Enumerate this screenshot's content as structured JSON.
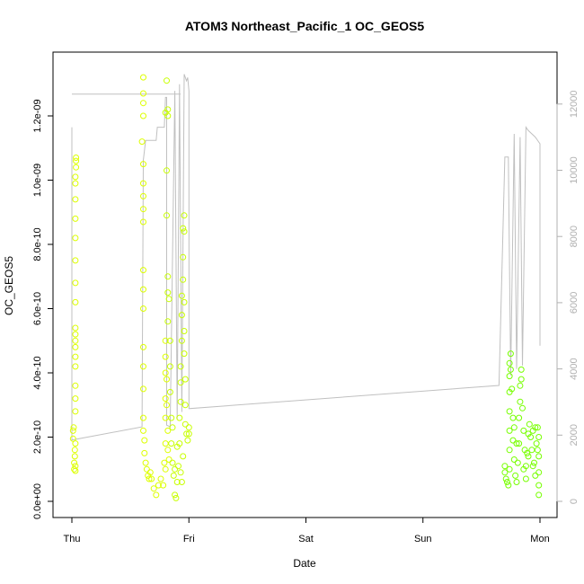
{
  "chart_data": {
    "type": "scatter",
    "title": "ATOM3 Northeast_Pacific_1 OC_GEOS5",
    "xlabel": "Date",
    "ylabel": "OC_GEOS5",
    "x_ticks": [
      "Thu",
      "Fri",
      "Sat",
      "Sun",
      "Mon"
    ],
    "xlim": [
      0,
      4
    ],
    "ylim": [
      0,
      1.35e-09
    ],
    "y_ticks": [
      "0.0e+00",
      "2.0e-10",
      "4.0e-10",
      "6.0e-10",
      "8.0e-10",
      "1.0e-09",
      "1.2e-09"
    ],
    "y2_ticks": [
      "0",
      "2000",
      "4000",
      "6000",
      "8000",
      "10000",
      "12000"
    ],
    "y2lim": [
      0,
      12500
    ],
    "grid": false,
    "colors": {
      "flight1": "#ddff00",
      "flight2": "#c8ff00",
      "flight3": "#77ff00",
      "altitude": "#c0c0c0"
    },
    "series": [
      {
        "points": [
          [
            0.01,
            2.2e-10
          ],
          [
            0.01,
            1.95e-10
          ],
          [
            0.015,
            2.3e-10
          ],
          [
            0.02,
            1e-10
          ],
          [
            0.02,
            1.2e-10
          ],
          [
            0.025,
            1.4e-10
          ],
          [
            0.025,
            1.6e-10
          ],
          [
            0.03,
            1.8e-10
          ],
          [
            0.03,
            2.8e-10
          ],
          [
            0.03,
            3.2e-10
          ],
          [
            0.03,
            3.6e-10
          ],
          [
            0.03,
            4.2e-10
          ],
          [
            0.03,
            4.5e-10
          ],
          [
            0.03,
            4.8e-10
          ],
          [
            0.03,
            5e-10
          ],
          [
            0.03,
            5.2e-10
          ],
          [
            0.03,
            5.4e-10
          ],
          [
            0.03,
            6.2e-10
          ],
          [
            0.03,
            6.8e-10
          ],
          [
            0.03,
            7.5e-10
          ],
          [
            0.03,
            8.2e-10
          ],
          [
            0.03,
            8.8e-10
          ],
          [
            0.03,
            9.4e-10
          ],
          [
            0.03,
            9.9e-10
          ],
          [
            0.03,
            1.01e-09
          ],
          [
            0.035,
            1.04e-09
          ],
          [
            0.035,
            1.06e-09
          ],
          [
            0.035,
            1.07e-09
          ],
          [
            0.03,
            9.5e-11
          ],
          [
            0.03,
            1.1e-10
          ],
          [
            0.61,
            1.32e-09
          ],
          [
            0.61,
            1.27e-09
          ],
          [
            0.61,
            1.24e-09
          ],
          [
            0.61,
            1.2e-09
          ],
          [
            0.6,
            1.12e-09
          ],
          [
            0.61,
            1.05e-09
          ],
          [
            0.61,
            9.9e-10
          ],
          [
            0.61,
            9.5e-10
          ],
          [
            0.61,
            9.1e-10
          ],
          [
            0.61,
            8.7e-10
          ],
          [
            0.61,
            7.2e-10
          ],
          [
            0.61,
            6.6e-10
          ],
          [
            0.61,
            6e-10
          ],
          [
            0.61,
            4.8e-10
          ],
          [
            0.61,
            4.2e-10
          ],
          [
            0.61,
            3.5e-10
          ],
          [
            0.61,
            2.6e-10
          ],
          [
            0.61,
            2.2e-10
          ],
          [
            0.62,
            1.9e-10
          ],
          [
            0.62,
            1.5e-10
          ],
          [
            0.63,
            1.2e-10
          ],
          [
            0.64,
            1e-10
          ],
          [
            0.65,
            8e-11
          ],
          [
            0.66,
            7e-11
          ],
          [
            0.67,
            9e-11
          ],
          [
            0.68,
            7e-11
          ],
          [
            0.7,
            4e-11
          ],
          [
            0.72,
            2e-11
          ],
          [
            0.74,
            5e-11
          ],
          [
            0.76,
            7e-11
          ],
          [
            0.78,
            5e-11
          ],
          [
            0.79,
            1.2e-10
          ],
          [
            0.8,
            1.8e-10
          ],
          [
            0.8,
            2.6e-10
          ],
          [
            0.8,
            3.2e-10
          ],
          [
            0.8,
            4e-10
          ],
          [
            0.8,
            4.5e-10
          ],
          [
            0.8,
            5e-10
          ],
          [
            0.81,
            3.8e-10
          ],
          [
            0.81,
            3e-10
          ],
          [
            0.82,
            2.2e-10
          ],
          [
            0.82,
            1.6e-10
          ],
          [
            0.83,
            1.3e-10
          ],
          [
            0.8,
            1e-10
          ]
        ]
      },
      {
        "points": [
          [
            0.81,
            1.31e-09
          ],
          [
            0.82,
            1.22e-09
          ],
          [
            0.82,
            1.2e-09
          ],
          [
            0.8,
            1.21e-09
          ],
          [
            0.81,
            1.03e-09
          ],
          [
            0.81,
            8.9e-10
          ],
          [
            0.82,
            7e-10
          ],
          [
            0.82,
            6.5e-10
          ],
          [
            0.83,
            6.3e-10
          ],
          [
            0.82,
            5.6e-10
          ],
          [
            0.84,
            5e-10
          ],
          [
            0.84,
            4.2e-10
          ],
          [
            0.84,
            3.4e-10
          ],
          [
            0.85,
            2.6e-10
          ],
          [
            0.85,
            1.8e-10
          ],
          [
            0.86,
            1.2e-10
          ],
          [
            0.87,
            8e-11
          ],
          [
            0.88,
            2e-11
          ],
          [
            0.89,
            1e-11
          ],
          [
            0.9,
            6e-11
          ],
          [
            0.91,
            1.1e-10
          ],
          [
            0.92,
            1.8e-10
          ],
          [
            0.92,
            2.6e-10
          ],
          [
            0.93,
            3.1e-10
          ],
          [
            0.93,
            3.7e-10
          ],
          [
            0.93,
            4.2e-10
          ],
          [
            0.94,
            5e-10
          ],
          [
            0.94,
            5.8e-10
          ],
          [
            0.94,
            6.4e-10
          ],
          [
            0.95,
            6.9e-10
          ],
          [
            0.95,
            7.6e-10
          ],
          [
            0.95,
            8.5e-10
          ],
          [
            0.96,
            8.9e-10
          ],
          [
            0.96,
            8.4e-10
          ],
          [
            0.96,
            6.2e-10
          ],
          [
            0.96,
            5.3e-10
          ],
          [
            0.96,
            4.6e-10
          ],
          [
            0.97,
            3.8e-10
          ],
          [
            0.97,
            3e-10
          ],
          [
            0.97,
            2.4e-10
          ],
          [
            0.98,
            2.1e-10
          ],
          [
            0.99,
            1.9e-10
          ],
          [
            1.0,
            2.1e-10
          ],
          [
            1.0,
            2.3e-10
          ],
          [
            0.93,
            9e-11
          ],
          [
            0.94,
            6e-11
          ],
          [
            0.95,
            1.4e-10
          ],
          [
            0.9,
            1.7e-10
          ],
          [
            0.88,
            1e-10
          ],
          [
            0.86,
            2.3e-10
          ]
        ]
      },
      {
        "points": [
          [
            3.7,
            1.1e-10
          ],
          [
            3.7,
            9e-11
          ],
          [
            3.71,
            7e-11
          ],
          [
            3.72,
            6e-11
          ],
          [
            3.73,
            5e-11
          ],
          [
            3.74,
            1e-10
          ],
          [
            3.74,
            1.6e-10
          ],
          [
            3.74,
            2.2e-10
          ],
          [
            3.74,
            2.8e-10
          ],
          [
            3.74,
            3.4e-10
          ],
          [
            3.74,
            3.9e-10
          ],
          [
            3.74,
            4.3e-10
          ],
          [
            3.75,
            4.6e-10
          ],
          [
            3.75,
            4.1e-10
          ],
          [
            3.76,
            3.5e-10
          ],
          [
            3.77,
            2.6e-10
          ],
          [
            3.77,
            1.9e-10
          ],
          [
            3.78,
            1.3e-10
          ],
          [
            3.79,
            8e-11
          ],
          [
            3.8,
            6e-11
          ],
          [
            3.81,
            1.2e-10
          ],
          [
            3.82,
            1.8e-10
          ],
          [
            3.82,
            2.6e-10
          ],
          [
            3.83,
            3.1e-10
          ],
          [
            3.83,
            3.6e-10
          ],
          [
            3.84,
            4.1e-10
          ],
          [
            3.84,
            3.8e-10
          ],
          [
            3.85,
            2.9e-10
          ],
          [
            3.86,
            2.2e-10
          ],
          [
            3.87,
            1.6e-10
          ],
          [
            3.88,
            1.1e-10
          ],
          [
            3.88,
            7e-11
          ],
          [
            3.89,
            1.5e-10
          ],
          [
            3.9,
            2.1e-10
          ],
          [
            3.91,
            2.4e-10
          ],
          [
            3.92,
            2e-10
          ],
          [
            3.93,
            1.6e-10
          ],
          [
            3.94,
            2.2e-10
          ],
          [
            3.95,
            1.2e-10
          ],
          [
            3.96,
            8e-11
          ],
          [
            3.97,
            1.8e-10
          ],
          [
            3.98,
            2.3e-10
          ],
          [
            3.99,
            2e-10
          ],
          [
            3.99,
            1.4e-10
          ],
          [
            3.99,
            9e-11
          ],
          [
            3.99,
            5e-11
          ],
          [
            3.99,
            2e-11
          ],
          [
            3.78,
            2.3e-10
          ],
          [
            3.8,
            1.8e-10
          ],
          [
            3.86,
            1e-10
          ],
          [
            3.9,
            1.4e-10
          ],
          [
            3.94,
            1.1e-10
          ],
          [
            3.96,
            2.3e-10
          ],
          [
            3.98,
            1.6e-10
          ]
        ]
      }
    ],
    "altitude": [
      [
        0.0,
        11300
      ],
      [
        0.0,
        1850
      ],
      [
        0.6,
        2250
      ],
      [
        0.61,
        10300
      ],
      [
        0.63,
        10900
      ],
      [
        0.72,
        10900
      ],
      [
        0.73,
        11300
      ],
      [
        0.78,
        11300
      ],
      [
        0.79,
        11300
      ],
      [
        0.8,
        12200
      ],
      [
        0.81,
        12200
      ],
      [
        0.81,
        2300
      ],
      [
        0.84,
        2250
      ],
      [
        0.88,
        12400
      ],
      [
        0.9,
        2500
      ],
      [
        0.92,
        12600
      ],
      [
        0.94,
        2700
      ],
      [
        0.96,
        12900
      ],
      [
        0.98,
        12700
      ],
      [
        0.99,
        12800
      ],
      [
        1.0,
        12400
      ],
      [
        1.0,
        2800
      ],
      [
        3.65,
        3500
      ],
      [
        3.7,
        10400
      ],
      [
        3.73,
        10400
      ],
      [
        3.75,
        3800
      ],
      [
        3.78,
        11100
      ],
      [
        3.8,
        4000
      ],
      [
        3.83,
        11000
      ],
      [
        3.85,
        4100
      ],
      [
        3.88,
        11300
      ],
      [
        3.9,
        11200
      ],
      [
        3.96,
        11000
      ],
      [
        4.0,
        10800
      ],
      [
        4.0,
        4700
      ]
    ],
    "altitude_top": [
      [
        0.0,
        12300
      ],
      [
        0.93,
        12300
      ]
    ]
  }
}
